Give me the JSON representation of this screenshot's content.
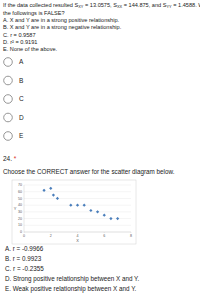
{
  "question_23": {
    "stem": [
      {
        "text": "If the data collected resulted S"
      },
      {
        "sub": "XY"
      },
      {
        "text": " = 13.0575, S"
      },
      {
        "sub": "XX"
      },
      {
        "text": " = 144.875, and S"
      },
      {
        "sub": "YY"
      },
      {
        "text": " = 1.4588. Which of"
      }
    ],
    "stem_line2": "the followings is FALSE?",
    "options": [
      "A. X and Y are in a strong positive relationship.",
      "B. X and Y are in a strong negative relationship.",
      "C. r = 0.9587",
      "D. r² = 0.9191",
      "E. None of the above."
    ],
    "choices": [
      "A",
      "B",
      "C",
      "D",
      "E"
    ]
  },
  "question_24": {
    "number": "24.",
    "required": "*",
    "prompt": "Choose the CORRECT answer for the scatter diagram below.",
    "options": [
      "A. r = -0.9966",
      "B. r = 0.9923",
      "C. r = -0.2355",
      "D. Strong positive relationship between X and Y.",
      "E. Weak positive relationship between X and Y."
    ]
  },
  "chart_data": {
    "type": "scatter",
    "x_label": "X",
    "y_label": "Y",
    "x": [
      1.5,
      2,
      2.2,
      2.5,
      3.5,
      4,
      4.5,
      5,
      5.5,
      6,
      6.5,
      7
    ],
    "values": [
      62,
      65,
      55,
      50,
      40,
      40,
      40,
      32,
      30,
      25,
      20,
      20
    ],
    "color": "#4a7ebb",
    "marker": "diamond",
    "xlim": [
      0,
      8
    ],
    "xticks": [
      0,
      2,
      4,
      6,
      8
    ],
    "ylim": [
      0,
      70
    ],
    "yticks": [
      0,
      10,
      20,
      30,
      40,
      50,
      60,
      70
    ],
    "grid": true
  }
}
